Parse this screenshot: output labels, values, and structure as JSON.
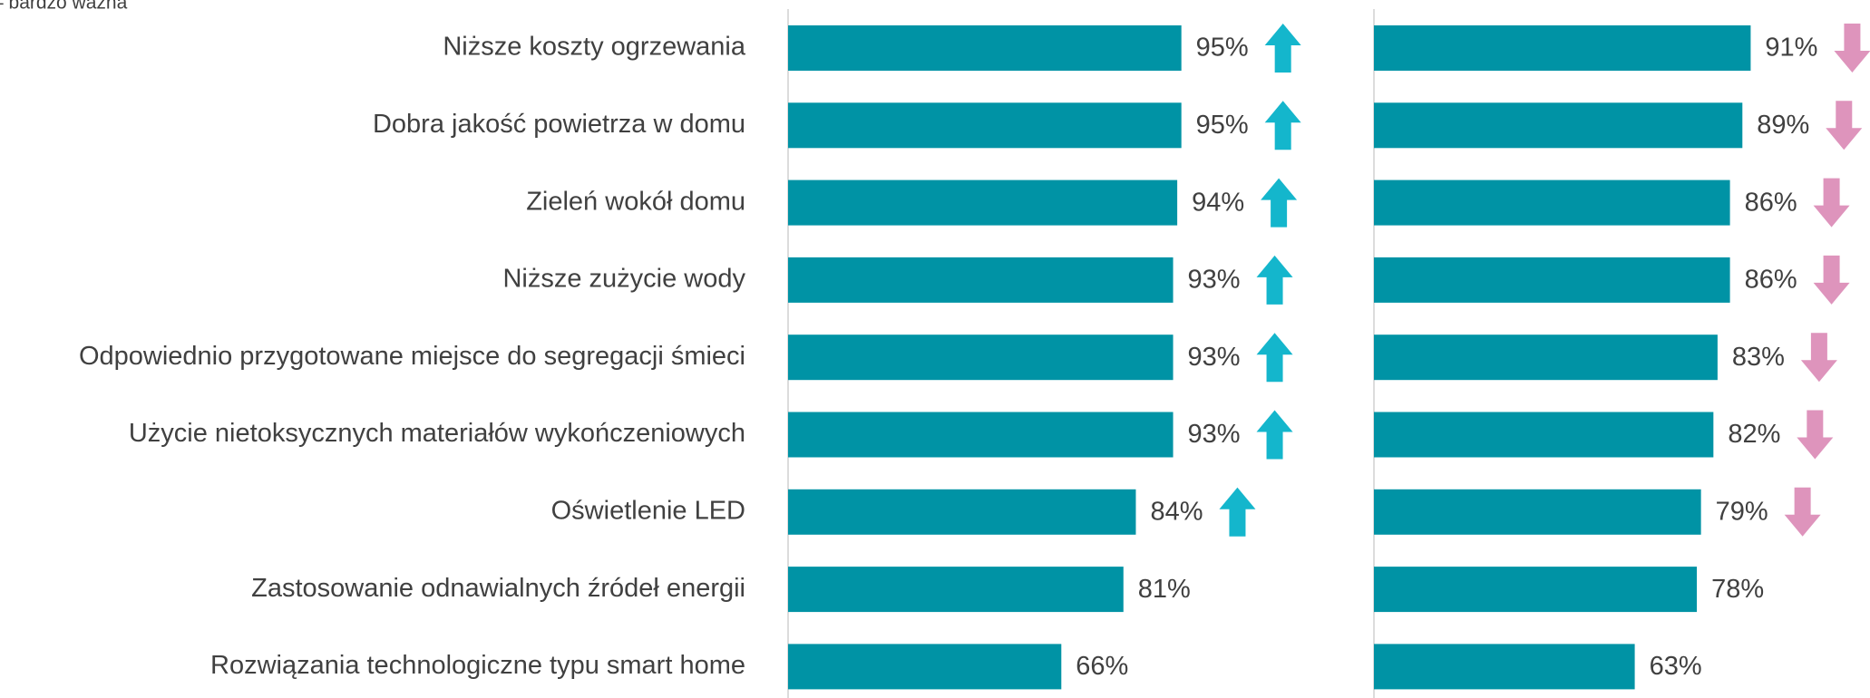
{
  "chart_data": {
    "type": "bar",
    "subtitle": "– bardzo ważna",
    "categories": [
      "Niższe koszty ogrzewania",
      "Dobra jakość powietrza w domu",
      "Zieleń wokół domu",
      "Niższe zużycie wody",
      "Odpowiednio przygotowane miejsce do segregacji śmieci",
      "Użycie nietoksycznych materiałów wykończeniowych",
      "Oświetlenie LED",
      "Zastosowanie odnawialnych źródeł energii",
      "Rozwiązania technologiczne typu smart home"
    ],
    "series": [
      {
        "color": "#0093a5",
        "arrow_color": "#14b6cc",
        "values": [
          95,
          95,
          94,
          93,
          93,
          93,
          84,
          81,
          66
        ],
        "value_labels": [
          "95%",
          "95%",
          "94%",
          "93%",
          "93%",
          "93%",
          "84%",
          "81%",
          "66%"
        ],
        "arrows": [
          "up",
          "up",
          "up",
          "up",
          "up",
          "up",
          "up",
          null,
          null
        ]
      },
      {
        "color": "#0093a5",
        "arrow_color": "#de94bc",
        "values": [
          91,
          89,
          86,
          86,
          83,
          82,
          79,
          78,
          63
        ],
        "value_labels": [
          "91%",
          "89%",
          "86%",
          "86%",
          "83%",
          "82%",
          "79%",
          "78%",
          "63%"
        ],
        "arrows": [
          "down",
          "down",
          "down",
          "down",
          "down",
          "down",
          "down",
          null,
          null
        ]
      }
    ],
    "xlim": [
      0,
      100
    ]
  }
}
